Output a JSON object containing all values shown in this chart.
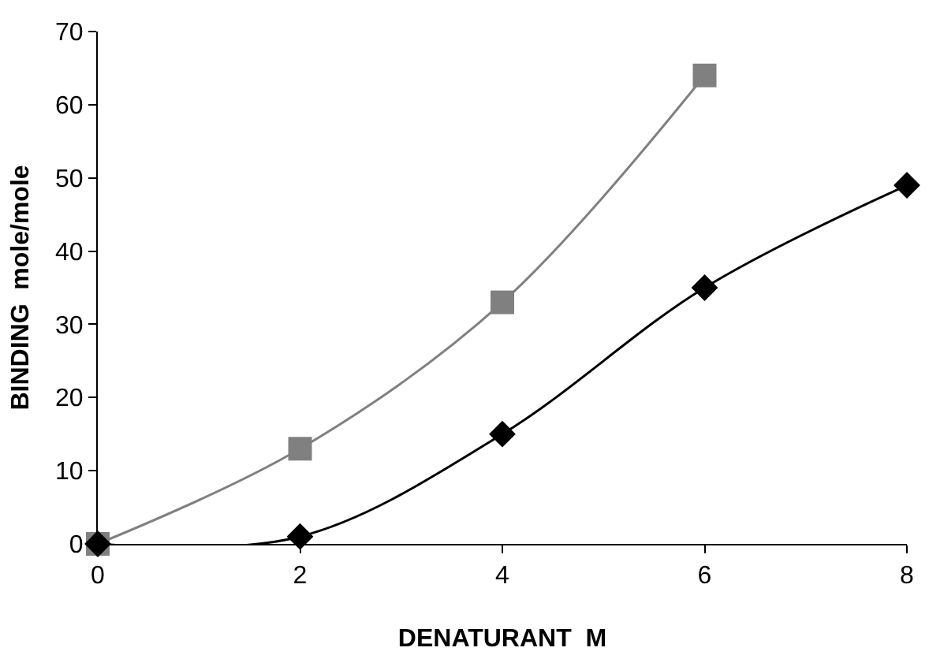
{
  "chart_data": {
    "type": "line",
    "xlabel": "DENATURANT  M",
    "ylabel": "BINDING  mole/mole",
    "series": [
      {
        "color": "#808080",
        "marker": "square",
        "x": [
          0,
          2,
          4,
          6
        ],
        "values": [
          0,
          13,
          33,
          64
        ]
      },
      {
        "color": "#000000",
        "marker": "diamond",
        "x": [
          0,
          2,
          4,
          6,
          8
        ],
        "values": [
          0,
          1,
          15,
          35,
          49
        ]
      }
    ],
    "xlim": [
      0,
      8
    ],
    "xticks": [
      0,
      2,
      4,
      6,
      8
    ],
    "ylim": [
      0,
      70
    ],
    "yticks": [
      0,
      10,
      20,
      30,
      40,
      50,
      60,
      70
    ],
    "grid": false,
    "legend": false,
    "line_style": "solid"
  }
}
